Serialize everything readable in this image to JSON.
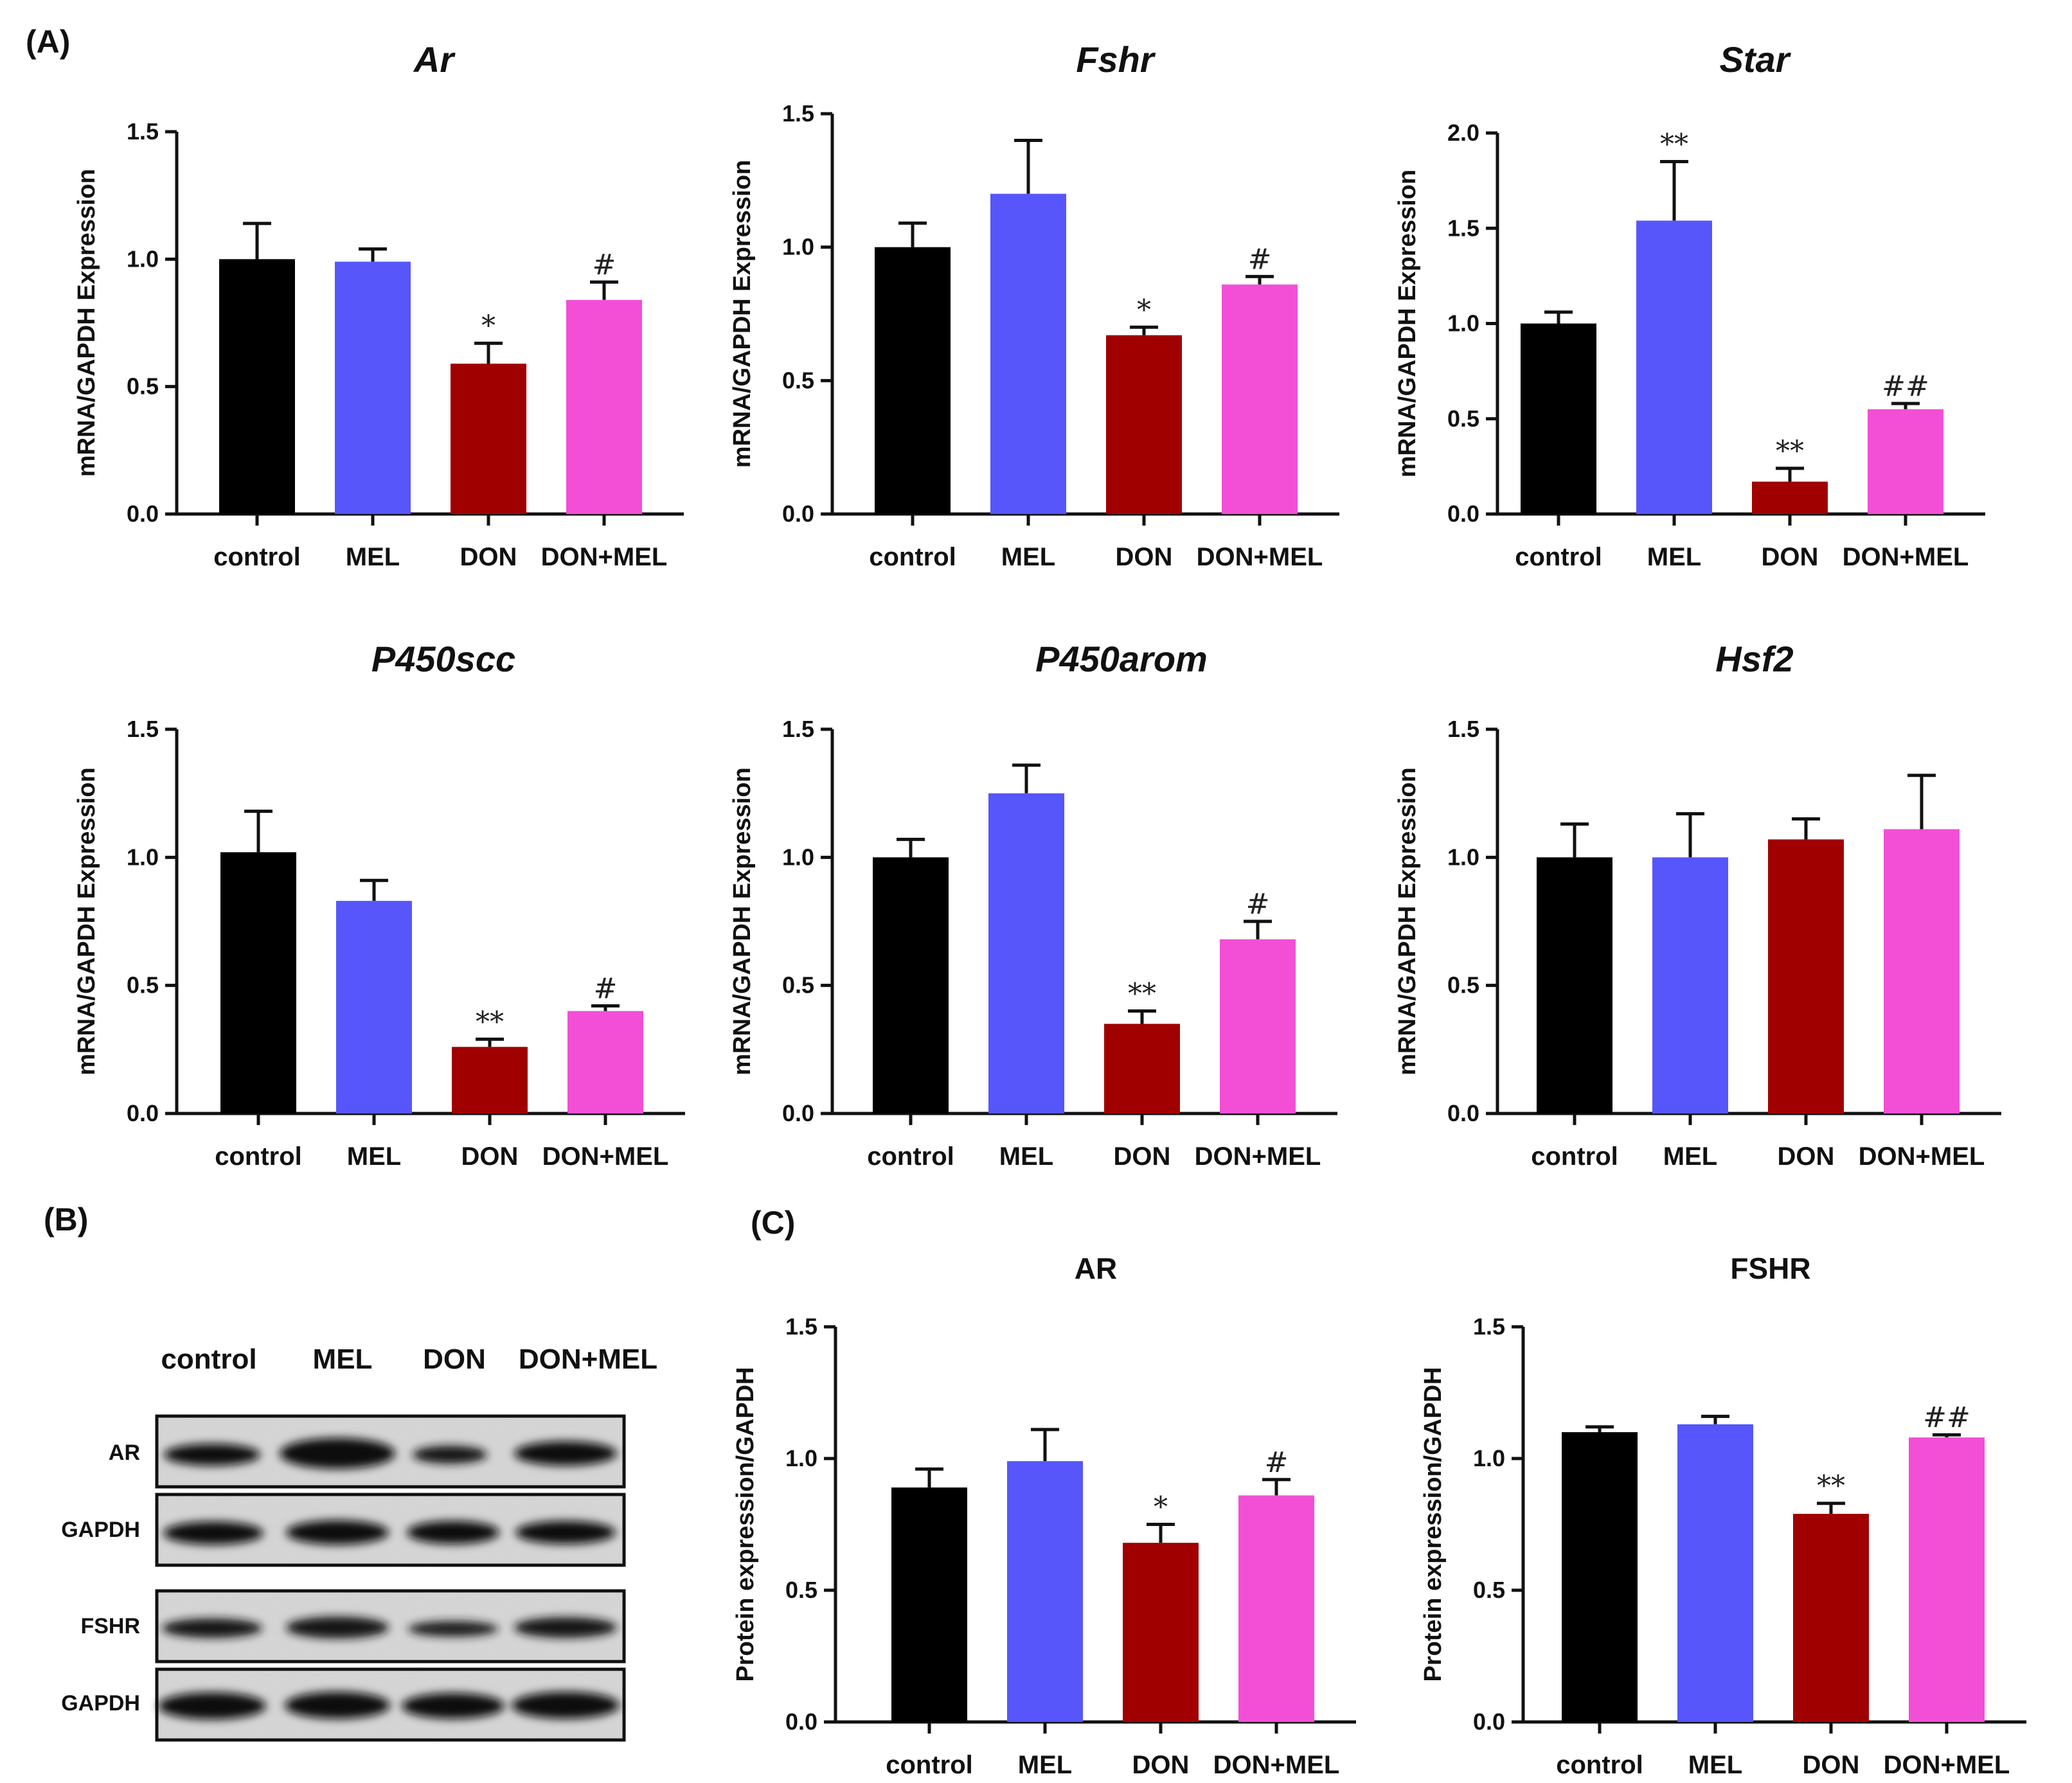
{
  "panel_labels": {
    "a": "(A)",
    "b": "(B)",
    "c": "(C)"
  },
  "colors": {
    "control": "#000000",
    "MEL": "#5656fa",
    "DON": "#a00000",
    "DON+MEL": "#f24fd6",
    "axis": "#111111"
  },
  "blot": {
    "lanes": [
      "control",
      "MEL",
      "DON",
      "DON+MEL"
    ],
    "rows": [
      "AR",
      "GAPDH",
      "FSHR",
      "GAPDH"
    ]
  },
  "chart_data": [
    {
      "type": "bar",
      "title": "Ar",
      "title_style": "italic",
      "ylabel": "mRNA/GAPDH Expression",
      "categories": [
        "control",
        "MEL",
        "DON",
        "DON+MEL"
      ],
      "values": [
        1.0,
        0.99,
        0.59,
        0.84
      ],
      "errors": [
        0.14,
        0.05,
        0.08,
        0.07
      ],
      "significance": [
        "",
        "",
        "*",
        "#"
      ],
      "ylim": [
        0,
        1.5
      ],
      "yticks": [
        "0.0",
        "0.5",
        "1.0",
        "1.5"
      ]
    },
    {
      "type": "bar",
      "title": "Fshr",
      "title_style": "italic",
      "ylabel": "mRNA/GAPDH Expression",
      "categories": [
        "control",
        "MEL",
        "DON",
        "DON+MEL"
      ],
      "values": [
        1.0,
        1.2,
        0.67,
        0.86
      ],
      "errors": [
        0.09,
        0.2,
        0.03,
        0.03
      ],
      "significance": [
        "",
        "",
        "*",
        "#"
      ],
      "ylim": [
        0,
        1.5
      ],
      "yticks": [
        "0.0",
        "0.5",
        "1.0",
        "1.5"
      ]
    },
    {
      "type": "bar",
      "title": "Star",
      "title_style": "italic",
      "ylabel": "mRNA/GAPDH Expression",
      "categories": [
        "control",
        "MEL",
        "DON",
        "DON+MEL"
      ],
      "values": [
        1.0,
        1.54,
        0.17,
        0.55
      ],
      "errors": [
        0.06,
        0.31,
        0.07,
        0.03
      ],
      "significance": [
        "",
        "**",
        "**",
        "##"
      ],
      "ylim": [
        0,
        2.0
      ],
      "yticks": [
        "0.0",
        "0.5",
        "1.0",
        "1.5",
        "2.0"
      ]
    },
    {
      "type": "bar",
      "title": "P450scc",
      "title_style": "italic",
      "ylabel": "mRNA/GAPDH Expression",
      "categories": [
        "control",
        "MEL",
        "DON",
        "DON+MEL"
      ],
      "values": [
        1.02,
        0.83,
        0.26,
        0.4
      ],
      "errors": [
        0.16,
        0.08,
        0.03,
        0.02
      ],
      "significance": [
        "",
        "",
        "**",
        "#"
      ],
      "ylim": [
        0,
        1.5
      ],
      "yticks": [
        "0.0",
        "0.5",
        "1.0",
        "1.5"
      ]
    },
    {
      "type": "bar",
      "title": "P450arom",
      "title_style": "italic",
      "ylabel": "mRNA/GAPDH Expression",
      "categories": [
        "control",
        "MEL",
        "DON",
        "DON+MEL"
      ],
      "values": [
        1.0,
        1.25,
        0.35,
        0.68
      ],
      "errors": [
        0.07,
        0.11,
        0.05,
        0.07
      ],
      "significance": [
        "",
        "",
        "**",
        "#"
      ],
      "ylim": [
        0,
        1.5
      ],
      "yticks": [
        "0.0",
        "0.5",
        "1.0",
        "1.5"
      ]
    },
    {
      "type": "bar",
      "title": "Hsf2",
      "title_style": "italic",
      "ylabel": "mRNA/GAPDH Expression",
      "categories": [
        "control",
        "MEL",
        "DON",
        "DON+MEL"
      ],
      "values": [
        1.0,
        1.0,
        1.07,
        1.11
      ],
      "errors": [
        0.13,
        0.17,
        0.08,
        0.21
      ],
      "significance": [
        "",
        "",
        "",
        ""
      ],
      "ylim": [
        0,
        1.5
      ],
      "yticks": [
        "0.0",
        "0.5",
        "1.0",
        "1.5"
      ]
    },
    {
      "type": "bar",
      "title": "AR",
      "title_style": "normal",
      "ylabel": "Protein expression/GAPDH",
      "categories": [
        "control",
        "MEL",
        "DON",
        "DON+MEL"
      ],
      "values": [
        0.89,
        0.99,
        0.68,
        0.86
      ],
      "errors": [
        0.07,
        0.12,
        0.07,
        0.06
      ],
      "significance": [
        "",
        "",
        "*",
        "#"
      ],
      "ylim": [
        0,
        1.5
      ],
      "yticks": [
        "0.0",
        "0.5",
        "1.0",
        "1.5"
      ]
    },
    {
      "type": "bar",
      "title": "FSHR",
      "title_style": "normal",
      "ylabel": "Protein expression/GAPDH",
      "categories": [
        "control",
        "MEL",
        "DON",
        "DON+MEL"
      ],
      "values": [
        1.1,
        1.13,
        0.79,
        1.08
      ],
      "errors": [
        0.02,
        0.03,
        0.04,
        0.01
      ],
      "significance": [
        "",
        "",
        "**",
        "##"
      ],
      "ylim": [
        0,
        1.5
      ],
      "yticks": [
        "0.0",
        "0.5",
        "1.0",
        "1.5"
      ]
    }
  ]
}
